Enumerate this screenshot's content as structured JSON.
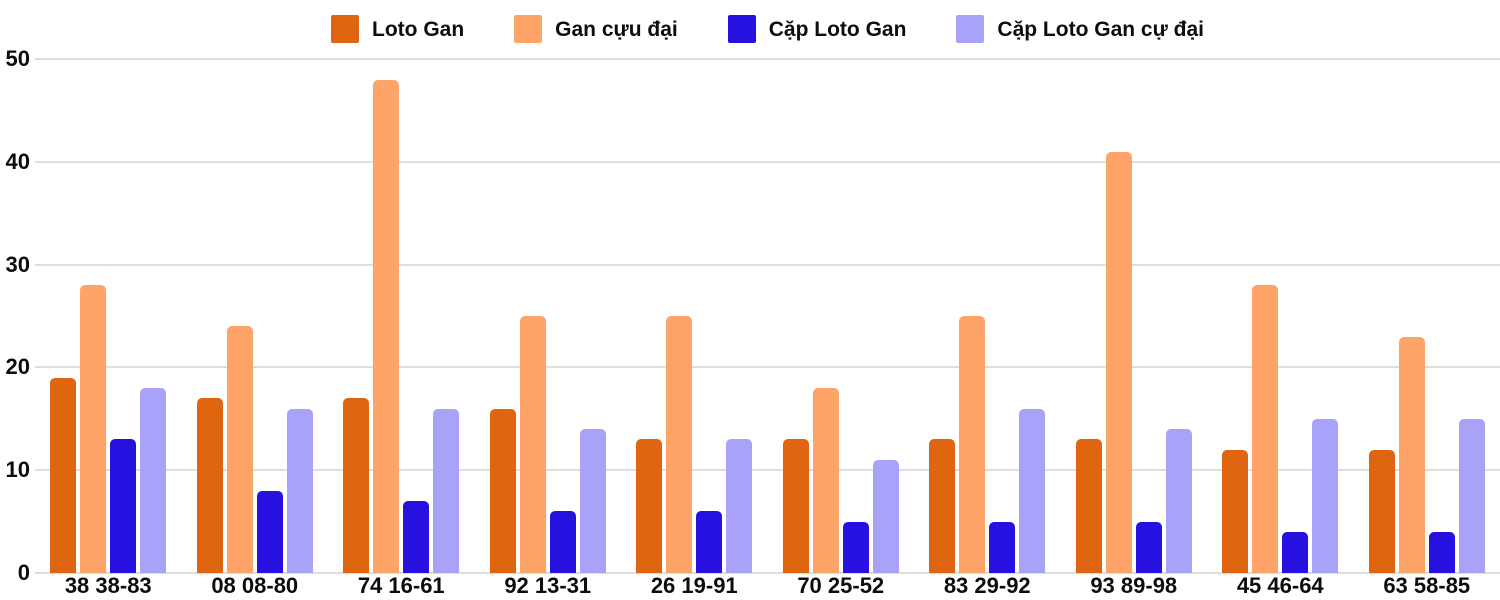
{
  "chart_data": {
    "type": "bar",
    "title": "",
    "xlabel": "",
    "ylabel": "",
    "categories": [
      "38 38-83",
      "08 08-80",
      "74 16-61",
      "92 13-31",
      "26 19-91",
      "70 25-52",
      "83 29-92",
      "93 89-98",
      "45 46-64",
      "63 58-85"
    ],
    "series": [
      {
        "name": "Loto Gan",
        "color": "#E06511",
        "values": [
          19,
          17,
          17,
          16,
          13,
          13,
          13,
          13,
          12,
          12
        ]
      },
      {
        "name": "Gan cựu đại",
        "color": "#FFA469",
        "values": [
          28,
          24,
          48,
          25,
          25,
          18,
          25,
          41,
          28,
          23
        ]
      },
      {
        "name": "Cặp Loto Gan",
        "color": "#2711E0",
        "values": [
          13,
          8,
          7,
          6,
          6,
          5,
          5,
          5,
          4,
          4
        ]
      },
      {
        "name": "Cặp Loto Gan cự đại",
        "color": "#A8A3F9",
        "values": [
          18,
          16,
          16,
          14,
          13,
          11,
          16,
          14,
          15,
          15
        ]
      }
    ],
    "ylim": [
      0,
      50
    ],
    "yticks": [
      0,
      10,
      20,
      30,
      40,
      50
    ],
    "grid": true,
    "legend_position": "top"
  },
  "style": {
    "gridline_color": "#dedede",
    "text_color": "#0d0d0d",
    "background": "#ffffff"
  }
}
